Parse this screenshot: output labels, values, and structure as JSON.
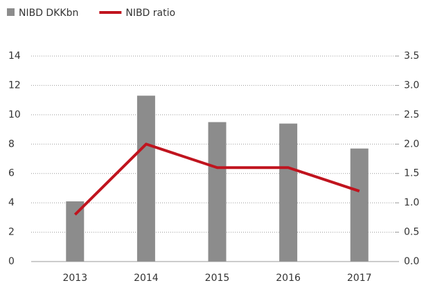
{
  "chart_data": {
    "type": "bar_line",
    "categories": [
      "2013",
      "2014",
      "2015",
      "2016",
      "2017"
    ],
    "series": [
      {
        "name": "NIBD DKKbn",
        "color": "#8c8c8c",
        "type": "bar",
        "values": [
          4.1,
          11.3,
          9.5,
          9.4,
          7.7
        ]
      },
      {
        "name": "NIBD ratio",
        "color": "#c0141e",
        "type": "line",
        "axis": "y2",
        "values": [
          0.8,
          2.0,
          1.6,
          1.6,
          1.2
        ]
      }
    ],
    "ylim": [
      0,
      14
    ],
    "yticks": [
      0,
      2,
      4,
      6,
      8,
      10,
      12,
      14
    ],
    "y2lim": [
      0,
      3.5
    ],
    "y2ticks": [
      {
        "value": 0,
        "label": "0.0"
      },
      0.5,
      {
        "value": 1,
        "label": "1.0"
      },
      1.5,
      {
        "value": 2,
        "label": "2.0"
      },
      2.5,
      {
        "value": 3,
        "label": "3.0"
      },
      3.5
    ],
    "grid": true,
    "legend": "top-left"
  }
}
